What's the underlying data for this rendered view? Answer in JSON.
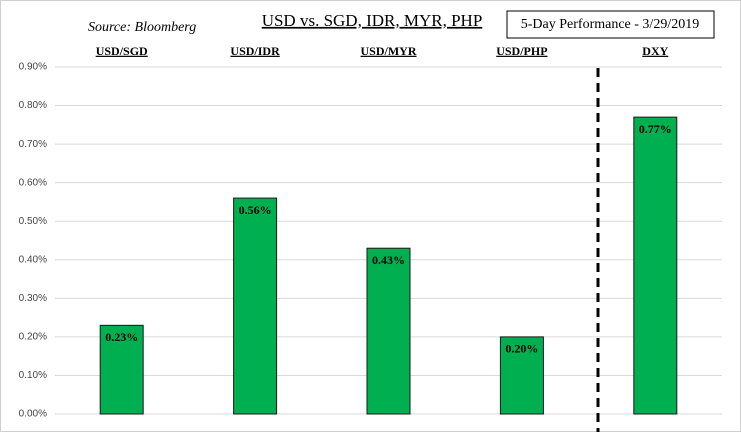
{
  "chart_data": {
    "type": "bar",
    "title": "USD vs. SGD, IDR, MYR, PHP",
    "subtitle": "5-Day Performance - 3/29/2019",
    "source": "Source: Bloomberg",
    "categories": [
      "USD/SGD",
      "USD/IDR",
      "USD/MYR",
      "USD/PHP",
      "DXY"
    ],
    "values": [
      0.23,
      0.56,
      0.43,
      0.2,
      0.77
    ],
    "value_labels": [
      "0.23%",
      "0.56%",
      "0.43%",
      "0.20%",
      "0.77%"
    ],
    "color": "#00b050",
    "ylim": [
      0,
      0.9
    ],
    "yticks": [
      {
        "value": 0,
        "label": "0.00%"
      },
      {
        "value": 0.1,
        "label": "0.10%"
      },
      {
        "value": 0.2,
        "label": "0.20%"
      },
      {
        "value": 0.3,
        "label": "0.30%"
      },
      {
        "value": 0.4,
        "label": "0.40%"
      },
      {
        "value": 0.5,
        "label": "0.50%"
      },
      {
        "value": 0.6,
        "label": "0.60%"
      },
      {
        "value": 0.7,
        "label": "0.70%"
      },
      {
        "value": 0.8,
        "label": "0.80%"
      },
      {
        "value": 0.9,
        "label": "0.90%"
      }
    ],
    "grid": true
  }
}
